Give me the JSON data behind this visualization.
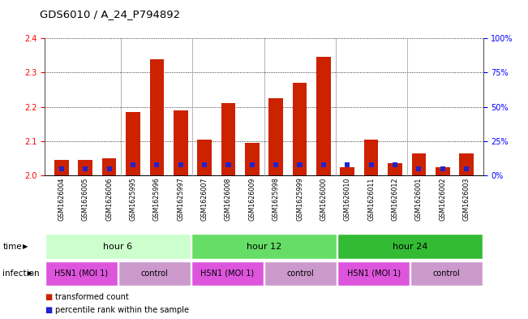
{
  "title": "GDS6010 / A_24_P794892",
  "samples": [
    "GSM1626004",
    "GSM1626005",
    "GSM1626006",
    "GSM1625995",
    "GSM1625996",
    "GSM1625997",
    "GSM1626007",
    "GSM1626008",
    "GSM1626009",
    "GSM1625998",
    "GSM1625999",
    "GSM1626000",
    "GSM1626010",
    "GSM1626011",
    "GSM1626012",
    "GSM1626001",
    "GSM1626002",
    "GSM1626003"
  ],
  "red_values": [
    2.045,
    2.045,
    2.05,
    2.185,
    2.34,
    2.19,
    2.105,
    2.21,
    2.095,
    2.225,
    2.27,
    2.345,
    2.025,
    2.105,
    2.035,
    2.065,
    2.025,
    2.065
  ],
  "blue_values": [
    5.0,
    5.0,
    5.0,
    8.0,
    8.0,
    8.0,
    8.0,
    8.0,
    8.0,
    8.0,
    8.0,
    8.0,
    8.0,
    8.0,
    8.0,
    5.0,
    5.0,
    5.0
  ],
  "ylim_left": [
    2.0,
    2.4
  ],
  "ylim_right": [
    0,
    100
  ],
  "yticks_left": [
    2.0,
    2.1,
    2.2,
    2.3,
    2.4
  ],
  "yticks_right": [
    0,
    25,
    50,
    75,
    100
  ],
  "ytick_labels_right": [
    "0%",
    "25%",
    "50%",
    "75%",
    "100%"
  ],
  "bar_color_red": "#cc2200",
  "bar_color_blue": "#2222cc",
  "base_value": 2.0,
  "time_groups": [
    {
      "label": "hour 6",
      "start": 0,
      "end": 6,
      "color": "#ccffcc"
    },
    {
      "label": "hour 12",
      "start": 6,
      "end": 12,
      "color": "#66dd66"
    },
    {
      "label": "hour 24",
      "start": 12,
      "end": 18,
      "color": "#33bb33"
    }
  ],
  "infection_groups": [
    {
      "label": "H5N1 (MOI 1)",
      "start": 0,
      "end": 3,
      "color": "#dd55dd"
    },
    {
      "label": "control",
      "start": 3,
      "end": 6,
      "color": "#cc99cc"
    },
    {
      "label": "H5N1 (MOI 1)",
      "start": 6,
      "end": 9,
      "color": "#dd55dd"
    },
    {
      "label": "control",
      "start": 9,
      "end": 12,
      "color": "#cc99cc"
    },
    {
      "label": "H5N1 (MOI 1)",
      "start": 12,
      "end": 15,
      "color": "#dd55dd"
    },
    {
      "label": "control",
      "start": 15,
      "end": 18,
      "color": "#cc99cc"
    }
  ],
  "time_label": "time",
  "infection_label": "infection",
  "legend_red": "transformed count",
  "legend_blue": "percentile rank within the sample",
  "grid_color": "#000000",
  "bg_color": "#ffffff",
  "plot_bg": "#ffffff",
  "bar_width": 0.6,
  "tick_fontsize": 7,
  "label_fontsize": 8,
  "separators": [
    3,
    6,
    9,
    12,
    15
  ]
}
